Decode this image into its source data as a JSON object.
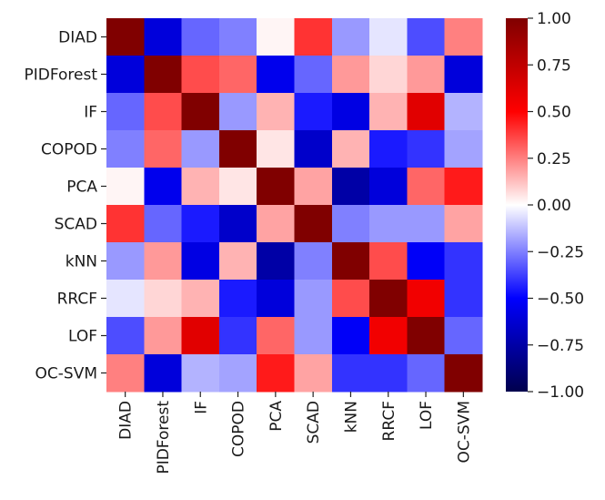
{
  "chart_data": {
    "type": "heatmap",
    "title": "",
    "xlabel": "",
    "ylabel": "",
    "row_labels": [
      "DIAD",
      "PIDForest",
      "IF",
      "COPOD",
      "PCA",
      "SCAD",
      "kNN",
      "RRCF",
      "LOF",
      "OC-SVM"
    ],
    "col_labels": [
      "DIAD",
      "PIDForest",
      "IF",
      "COPOD",
      "PCA",
      "SCAD",
      "kNN",
      "RRCF",
      "LOF",
      "OC-SVM"
    ],
    "values": [
      [
        1.0,
        -0.6,
        -0.3,
        -0.25,
        0.02,
        0.4,
        -0.2,
        -0.05,
        -0.35,
        0.25
      ],
      [
        -0.6,
        1.0,
        0.35,
        0.3,
        -0.55,
        -0.3,
        0.2,
        0.08,
        0.2,
        -0.6
      ],
      [
        -0.3,
        0.35,
        1.0,
        -0.2,
        0.15,
        -0.45,
        -0.58,
        0.15,
        0.62,
        -0.15
      ],
      [
        -0.25,
        0.3,
        -0.2,
        1.0,
        0.05,
        -0.65,
        0.15,
        -0.45,
        -0.4,
        -0.18
      ],
      [
        0.02,
        -0.55,
        0.15,
        0.05,
        1.0,
        0.18,
        -0.75,
        -0.6,
        0.3,
        0.45
      ],
      [
        0.4,
        -0.3,
        -0.45,
        -0.65,
        0.18,
        1.0,
        -0.25,
        -0.2,
        -0.2,
        0.18
      ],
      [
        -0.2,
        0.2,
        -0.58,
        0.15,
        -0.75,
        -0.25,
        1.0,
        0.35,
        -0.52,
        -0.4
      ],
      [
        -0.05,
        0.08,
        0.15,
        -0.45,
        -0.6,
        -0.2,
        0.35,
        1.0,
        0.55,
        -0.4
      ],
      [
        -0.35,
        0.2,
        0.62,
        -0.4,
        0.3,
        -0.2,
        -0.52,
        0.55,
        1.0,
        -0.3
      ],
      [
        0.25,
        -0.6,
        -0.15,
        -0.18,
        0.45,
        0.18,
        -0.4,
        -0.4,
        -0.3,
        1.0
      ]
    ],
    "colormap": "seismic",
    "colorbar": {
      "vmin": -1.0,
      "vmax": 1.0,
      "ticks": [
        1.0,
        0.75,
        0.5,
        0.25,
        0.0,
        -0.25,
        -0.5,
        -0.75,
        -1.0
      ],
      "tick_labels": [
        "1.00",
        "0.75",
        "0.50",
        "0.25",
        "0.00",
        "−0.25",
        "−0.50",
        "−0.75",
        "−1.00"
      ]
    }
  }
}
